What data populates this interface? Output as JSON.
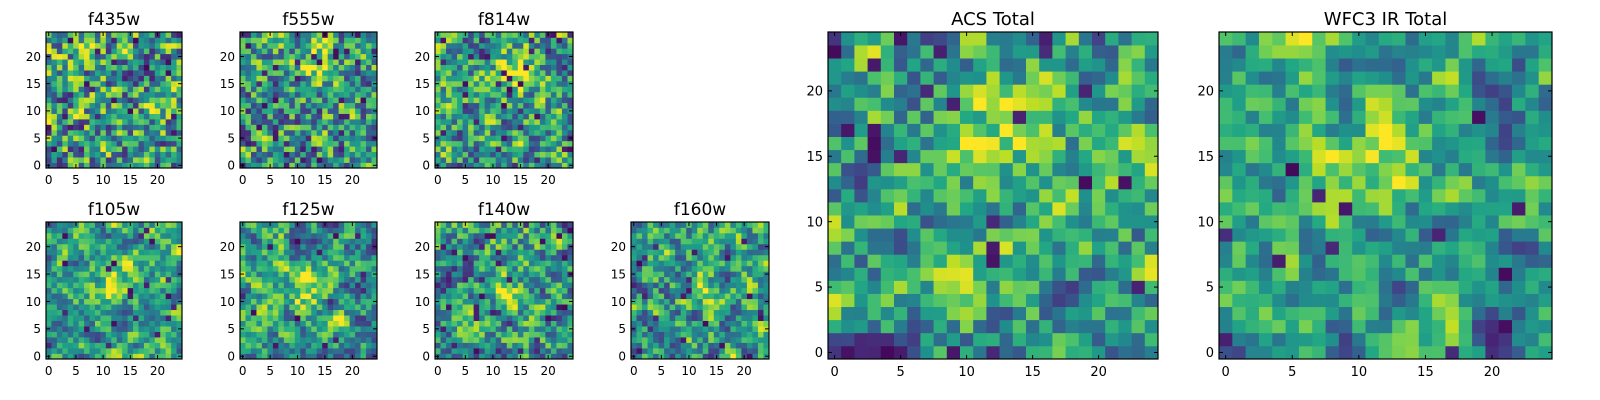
{
  "chart_data": [
    {
      "type": "heatmap",
      "title": "f435w",
      "xticks": [
        0,
        5,
        10,
        15,
        20
      ],
      "yticks": [
        0,
        5,
        10,
        15,
        20
      ],
      "xlim": [
        -0.5,
        24.5
      ],
      "ylim": [
        -0.5,
        24.5
      ],
      "grid_size": 25,
      "colormap": "viridis",
      "bright_center": [
        14,
        14
      ],
      "bright_strength": 0.0,
      "noise_level": 0.8,
      "dark_fraction": 0.05,
      "seed": 11
    },
    {
      "type": "heatmap",
      "title": "f555w",
      "xticks": [
        0,
        5,
        10,
        15,
        20
      ],
      "yticks": [
        0,
        5,
        10,
        15,
        20
      ],
      "xlim": [
        -0.5,
        24.5
      ],
      "ylim": [
        -0.5,
        24.5
      ],
      "grid_size": 25,
      "colormap": "viridis",
      "bright_center": [
        14,
        19
      ],
      "bright_strength": 0.35,
      "noise_level": 0.7,
      "dark_fraction": 0.06,
      "seed": 23
    },
    {
      "type": "heatmap",
      "title": "f814w",
      "xticks": [
        0,
        5,
        10,
        15,
        20
      ],
      "yticks": [
        0,
        5,
        10,
        15,
        20
      ],
      "xlim": [
        -0.5,
        24.5
      ],
      "ylim": [
        -0.5,
        24.5
      ],
      "grid_size": 25,
      "colormap": "viridis",
      "bright_center": [
        14,
        18
      ],
      "bright_strength": 0.45,
      "noise_level": 0.65,
      "dark_fraction": 0.06,
      "seed": 37
    },
    {
      "type": "heatmap",
      "title": "f105w",
      "xticks": [
        0,
        5,
        10,
        15,
        20
      ],
      "yticks": [
        0,
        5,
        10,
        15,
        20
      ],
      "xlim": [
        -0.5,
        24.5
      ],
      "ylim": [
        -0.5,
        24.5
      ],
      "grid_size": 25,
      "colormap": "viridis",
      "bright_center": [
        12,
        14
      ],
      "bright_strength": 0.45,
      "noise_level": 0.45,
      "dark_fraction": 0.03,
      "seed": 41
    },
    {
      "type": "heatmap",
      "title": "f125w",
      "xticks": [
        0,
        5,
        10,
        15,
        20
      ],
      "yticks": [
        0,
        5,
        10,
        15,
        20
      ],
      "xlim": [
        -0.5,
        24.5
      ],
      "ylim": [
        -0.5,
        24.5
      ],
      "grid_size": 25,
      "colormap": "viridis",
      "bright_center": [
        12,
        12
      ],
      "bright_strength": 0.3,
      "noise_level": 0.5,
      "dark_fraction": 0.03,
      "seed": 53
    },
    {
      "type": "heatmap",
      "title": "f140w",
      "xticks": [
        0,
        5,
        10,
        15,
        20
      ],
      "yticks": [
        0,
        5,
        10,
        15,
        20
      ],
      "xlim": [
        -0.5,
        24.5
      ],
      "ylim": [
        -0.5,
        24.5
      ],
      "grid_size": 25,
      "colormap": "viridis",
      "bright_center": [
        12,
        12
      ],
      "bright_strength": 0.25,
      "noise_level": 0.55,
      "dark_fraction": 0.04,
      "seed": 67
    },
    {
      "type": "heatmap",
      "title": "f160w",
      "xticks": [
        0,
        5,
        10,
        15,
        20
      ],
      "yticks": [
        0,
        5,
        10,
        15,
        20
      ],
      "xlim": [
        -0.5,
        24.5
      ],
      "ylim": [
        -0.5,
        24.5
      ],
      "grid_size": 25,
      "colormap": "viridis",
      "bright_center": [
        13,
        12
      ],
      "bright_strength": 0.25,
      "noise_level": 0.55,
      "dark_fraction": 0.04,
      "seed": 79
    },
    {
      "type": "heatmap",
      "title": "ACS Total",
      "xticks": [
        0,
        5,
        10,
        15,
        20
      ],
      "yticks": [
        0,
        5,
        10,
        15,
        20
      ],
      "xlim": [
        -0.5,
        24.5
      ],
      "ylim": [
        -0.5,
        24.5
      ],
      "grid_size": 25,
      "colormap": "viridis",
      "bright_center": [
        13,
        18
      ],
      "bright_strength": 0.45,
      "noise_level": 0.5,
      "dark_fraction": 0.04,
      "seed": 97
    },
    {
      "type": "heatmap",
      "title": "WFC3 IR Total",
      "xticks": [
        0,
        5,
        10,
        15,
        20
      ],
      "yticks": [
        0,
        5,
        10,
        15,
        20
      ],
      "xlim": [
        -0.5,
        24.5
      ],
      "ylim": [
        -0.5,
        24.5
      ],
      "grid_size": 25,
      "colormap": "viridis",
      "bright_center": [
        12,
        15
      ],
      "bright_strength": 0.45,
      "noise_level": 0.4,
      "dark_fraction": 0.03,
      "seed": 131
    }
  ]
}
